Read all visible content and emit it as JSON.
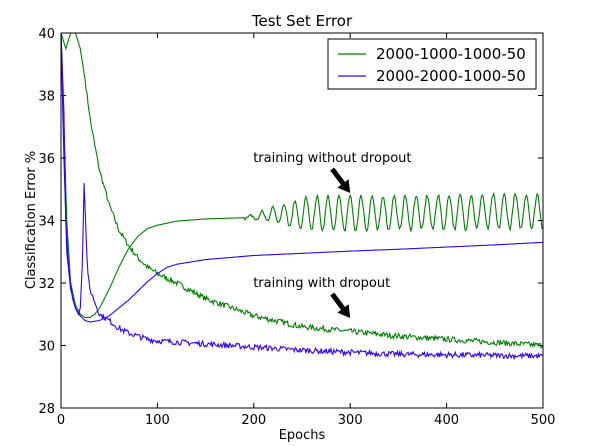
{
  "chart_data": {
    "type": "line",
    "title": "Test Set Error",
    "xlabel": "Epochs",
    "ylabel": "Classification Error %",
    "xlim": [
      0,
      500
    ],
    "ylim": [
      28,
      40
    ],
    "xticks": [
      0,
      100,
      200,
      300,
      400,
      500
    ],
    "yticks": [
      28,
      30,
      32,
      34,
      36,
      38,
      40
    ],
    "grid": false,
    "legend_position": "top-right",
    "series": [
      {
        "name": "2000-1000-1000-50",
        "color": "#008000",
        "style": "dropout-curve",
        "label": "with dropout",
        "points": [
          [
            0,
            40
          ],
          [
            5,
            39.5
          ],
          [
            10,
            40
          ],
          [
            15,
            40
          ],
          [
            20,
            39.5
          ],
          [
            25,
            38.5
          ],
          [
            30,
            37.3
          ],
          [
            35,
            36.4
          ],
          [
            40,
            35.6
          ],
          [
            50,
            34.5
          ],
          [
            60,
            33.7
          ],
          [
            70,
            33.2
          ],
          [
            80,
            32.8
          ],
          [
            90,
            32.5
          ],
          [
            100,
            32.3
          ],
          [
            120,
            32.0
          ],
          [
            150,
            31.5
          ],
          [
            200,
            30.95
          ],
          [
            250,
            30.6
          ],
          [
            300,
            30.45
          ],
          [
            350,
            30.3
          ],
          [
            400,
            30.2
          ],
          [
            450,
            30.1
          ],
          [
            500,
            30.0
          ]
        ]
      },
      {
        "name": "2000-1000-1000-50",
        "color": "#008000",
        "style": "no-dropout-curve",
        "label": "without dropout",
        "points": [
          [
            0,
            40
          ],
          [
            3,
            37
          ],
          [
            6,
            34
          ],
          [
            10,
            32
          ],
          [
            15,
            31.3
          ],
          [
            20,
            31.0
          ],
          [
            25,
            30.9
          ],
          [
            30,
            30.9
          ],
          [
            35,
            31.0
          ],
          [
            40,
            31.2
          ],
          [
            50,
            31.8
          ],
          [
            60,
            32.5
          ],
          [
            70,
            33.1
          ],
          [
            80,
            33.5
          ],
          [
            90,
            33.75
          ],
          [
            100,
            33.85
          ],
          [
            120,
            33.98
          ],
          [
            150,
            34.05
          ],
          [
            180,
            34.08
          ],
          [
            200,
            34.1
          ],
          [
            220,
            34.2
          ],
          [
            500,
            34.3
          ]
        ]
      },
      {
        "name": "2000-2000-1000-50",
        "color": "#3300ff",
        "style": "dropout-curve",
        "label": "with dropout",
        "points": [
          [
            0,
            40
          ],
          [
            3,
            37.5
          ],
          [
            5,
            34
          ],
          [
            8,
            32.5
          ],
          [
            12,
            31.5
          ],
          [
            15,
            31.2
          ],
          [
            18,
            31.0
          ],
          [
            20,
            31.2
          ],
          [
            22,
            32.5
          ],
          [
            24,
            35.2
          ],
          [
            26,
            33.5
          ],
          [
            28,
            32.2
          ],
          [
            30,
            31.8
          ],
          [
            35,
            31.4
          ],
          [
            40,
            31.0
          ],
          [
            50,
            30.8
          ],
          [
            60,
            30.55
          ],
          [
            70,
            30.4
          ],
          [
            80,
            30.3
          ],
          [
            90,
            30.2
          ],
          [
            100,
            30.15
          ],
          [
            150,
            30.05
          ],
          [
            200,
            29.95
          ],
          [
            250,
            29.85
          ],
          [
            300,
            29.78
          ],
          [
            350,
            29.72
          ],
          [
            400,
            29.7
          ],
          [
            450,
            29.68
          ],
          [
            500,
            29.66
          ]
        ]
      },
      {
        "name": "2000-2000-1000-50",
        "color": "#3300ff",
        "style": "no-dropout-curve",
        "label": "without dropout",
        "points": [
          [
            0,
            40
          ],
          [
            3,
            36
          ],
          [
            6,
            33
          ],
          [
            10,
            31.8
          ],
          [
            15,
            31.2
          ],
          [
            20,
            30.95
          ],
          [
            25,
            30.8
          ],
          [
            30,
            30.75
          ],
          [
            40,
            30.8
          ],
          [
            50,
            30.95
          ],
          [
            60,
            31.2
          ],
          [
            70,
            31.45
          ],
          [
            80,
            31.75
          ],
          [
            90,
            32.05
          ],
          [
            100,
            32.3
          ],
          [
            110,
            32.5
          ],
          [
            120,
            32.6
          ],
          [
            150,
            32.75
          ],
          [
            200,
            32.88
          ],
          [
            250,
            32.95
          ],
          [
            300,
            33.02
          ],
          [
            350,
            33.08
          ],
          [
            400,
            33.15
          ],
          [
            450,
            33.22
          ],
          [
            500,
            33.3
          ]
        ]
      }
    ],
    "annotations": [
      {
        "text": "training without dropout",
        "x": 300,
        "y": 36.0
      },
      {
        "text": "training with dropout",
        "x": 300,
        "y": 32.0
      }
    ]
  },
  "legend": {
    "items": [
      {
        "label": "2000-1000-1000-50",
        "color": "#008000"
      },
      {
        "label": "2000-2000-1000-50",
        "color": "#3300ff"
      }
    ]
  }
}
